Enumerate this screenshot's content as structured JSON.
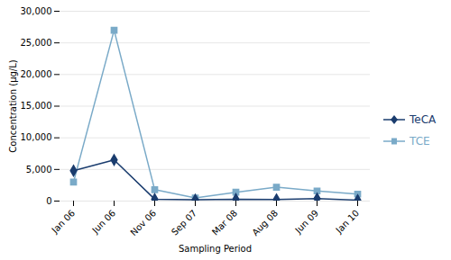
{
  "chart_data": {
    "type": "line",
    "xlabel": "Sampling Period",
    "ylabel": "Concentration (µg/L)",
    "categories": [
      "Jan 06",
      "Jun 06",
      "Nov 06",
      "Sep 07",
      "Mar 08",
      "Aug 08",
      "Jun 09",
      "Jan 10"
    ],
    "series": [
      {
        "name": "TeCA",
        "color": "#1a3c6e",
        "marker": "diamond",
        "values": [
          4800,
          6500,
          300,
          200,
          300,
          250,
          400,
          150
        ]
      },
      {
        "name": "TCE",
        "color": "#7aaac8",
        "marker": "square",
        "values": [
          3000,
          27000,
          1800,
          500,
          1400,
          2200,
          1600,
          1100
        ]
      }
    ],
    "ylim": [
      0,
      30000
    ],
    "yticks": [
      0,
      {
        "value": 5000,
        "label": "5,000"
      },
      {
        "value": 10000,
        "label": "10,000"
      },
      {
        "value": 15000,
        "label": "15,000"
      },
      {
        "value": 20000,
        "label": "20,000"
      },
      {
        "value": 25000,
        "label": "25,000"
      },
      {
        "value": 30000,
        "label": "30,000"
      }
    ],
    "grid": true,
    "legend": "right"
  }
}
